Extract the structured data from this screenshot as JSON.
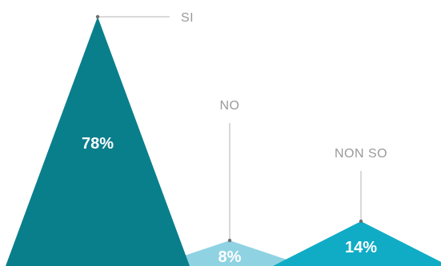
{
  "chart_data": {
    "type": "bar",
    "title": "",
    "xlabel": "",
    "ylabel": "",
    "categories": [
      "SI",
      "NO",
      "NON SO"
    ],
    "values": [
      78,
      8,
      14
    ],
    "value_labels": [
      "78%",
      "8%",
      "14%"
    ],
    "unit": "%",
    "ylim": [
      0,
      100
    ],
    "grid": false,
    "colors": [
      "#0a7f8c",
      "#8fd3e3",
      "#10acc6"
    ]
  }
}
